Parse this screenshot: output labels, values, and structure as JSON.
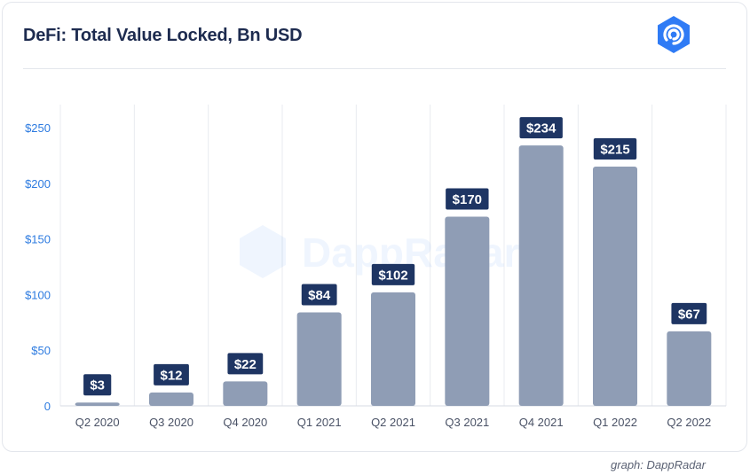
{
  "header": {
    "title": "DeFi: Total Value Locked, Bn USD",
    "logo_icon": "dappradar-logo-icon"
  },
  "watermark": {
    "text": "DappRadar"
  },
  "footer": {
    "credit": "graph: DappRadar"
  },
  "colors": {
    "bar": "#8f9db5",
    "label_bg": "#1e3563",
    "label_text": "#ffffff",
    "y_tick": "#2d7be0",
    "x_tick": "#4a5266",
    "grid": "#e8ebf0",
    "title": "#1d2b4f",
    "accent": "#2f7bf5"
  },
  "chart_data": {
    "type": "bar",
    "title": "DeFi: Total Value Locked, Bn USD",
    "xlabel": "",
    "ylabel": "",
    "categories": [
      "Q2 2020",
      "Q3 2020",
      "Q4 2020",
      "Q1 2021",
      "Q2 2021",
      "Q3 2021",
      "Q4 2021",
      "Q1 2022",
      "Q2 2022"
    ],
    "values": [
      3,
      12,
      22,
      84,
      102,
      170,
      234,
      215,
      67
    ],
    "data_labels": [
      "$3",
      "$12",
      "$22",
      "$84",
      "$102",
      "$170",
      "$234",
      "$215",
      "$67"
    ],
    "y_ticks": [
      0,
      50,
      100,
      150,
      200,
      250
    ],
    "y_tick_labels": [
      "0",
      "$50",
      "$100",
      "$150",
      "$200",
      "$250"
    ],
    "ylim": [
      0,
      250
    ],
    "grid": "vertical",
    "legend": "none"
  }
}
